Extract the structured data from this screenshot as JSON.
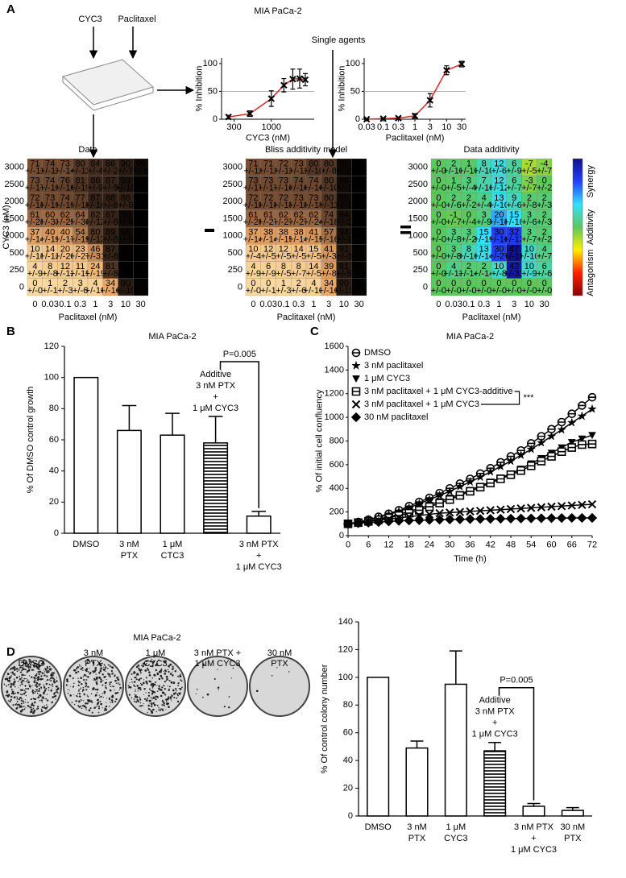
{
  "figure": {
    "panel_labels": [
      "A",
      "B",
      "C",
      "D"
    ],
    "title_a": "MIA PaCa-2",
    "schematic": {
      "drug1": "CYC3",
      "drug2": "Paclitaxel",
      "single_agents": "Single agents"
    },
    "title_d": "MIA PaCa-2",
    "plates": [
      [
        "DMSO"
      ],
      [
        "3 nM",
        "PTX"
      ],
      [
        "1 μM",
        "CYC3"
      ],
      [
        "3 nM PTX +",
        "1 μM CYC3"
      ],
      [
        "30 nM",
        "PTX"
      ]
    ]
  },
  "chart_data": [
    {
      "type": "line",
      "xscale": "log",
      "x": [
        250,
        500,
        1000,
        1500,
        2000,
        2500,
        3000
      ],
      "xlim": [
        200,
        4000
      ],
      "xticks": [
        300,
        1000
      ],
      "ylim": [
        0,
        110
      ],
      "yticks": [
        0,
        50,
        100
      ],
      "reference_line": 50,
      "xlabel": "CYC3 (nM)",
      "ylabel": "% Inhibition",
      "series": [
        {
          "values": [
            4,
            10,
            37,
            61,
            72,
            73,
            71
          ],
          "errors": [
            3,
            5,
            14,
            12,
            18,
            17,
            11
          ],
          "color": "#d62728",
          "marker": "x",
          "marker_color": "#000000"
        }
      ]
    },
    {
      "type": "line",
      "xscale": "log",
      "x": [
        0.03,
        0.1,
        0.3,
        1,
        3,
        10,
        30
      ],
      "xlim": [
        0.025,
        40
      ],
      "xticks": [
        0.03,
        0.1,
        0.3,
        1,
        3,
        10,
        30
      ],
      "ylim": [
        0,
        110
      ],
      "yticks": [
        0,
        50,
        100
      ],
      "reference_line": 50,
      "xlabel": "Paclitaxel (nM)",
      "ylabel": "% Inhibition",
      "series": [
        {
          "values": [
            0,
            1,
            2,
            6,
            34,
            88,
            99
          ],
          "errors": [
            1,
            1,
            2,
            4,
            12,
            8,
            5
          ],
          "color": "#d62728",
          "marker": "x",
          "marker_color": "#000000"
        }
      ]
    },
    {
      "type": "heatmap",
      "title": "Data",
      "x": [
        0,
        0.03,
        0.1,
        0.3,
        1,
        3,
        10,
        30
      ],
      "y": [
        3000,
        2500,
        2000,
        1500,
        1000,
        500,
        250,
        0
      ],
      "xlabel": "Paclitaxel (nM)",
      "ylabel": "CYC3 (nM)",
      "clim": [
        0,
        100
      ],
      "colors": [
        "#f9d9a0",
        "#eaa868",
        "#8a5a3a",
        "#000000"
      ],
      "values": [
        [
          71,
          74,
          73,
          80,
          84,
          86,
          90,
          96
        ],
        [
          73,
          74,
          76,
          81,
          86,
          87,
          93,
          100
        ],
        [
          72,
          73,
          74,
          77,
          87,
          88,
          88,
          102
        ],
        [
          61,
          60,
          62,
          64,
          82,
          87,
          96,
          103
        ],
        [
          37,
          40,
          40,
          54,
          80,
          89,
          96,
          103
        ],
        [
          10,
          14,
          20,
          23,
          46,
          87,
          99,
          103
        ],
        [
          4,
          8,
          12,
          11,
          24,
          81,
          100,
          105
        ],
        [
          0,
          1,
          2,
          3,
          4,
          34,
          90,
          99
        ]
      ],
      "error_labels": [
        [
          "+/-11",
          "+/-11",
          "+/-14",
          "+/-11",
          "+/-4",
          "+/-2",
          "+/-7",
          "+/-8"
        ],
        [
          "+/-17",
          "+/-19",
          "+/-16",
          "+/-19",
          "+/-9",
          "+/-5",
          "+/-10",
          "+/-3"
        ],
        [
          "+/-18",
          "+/-19",
          "+/-19",
          "+/-18",
          "+/-16",
          "+/-8",
          "+/-6",
          "+/-4"
        ],
        [
          "+/-28",
          "+/-33",
          "+/-29",
          "+/-30",
          "+/-12",
          "+/-8",
          "+/-6",
          "+/-2"
        ],
        [
          "+/-14",
          "+/-19",
          "+/-17",
          "+/-19",
          "+/-12",
          "+/-8",
          "+/-6",
          "+/-3"
        ],
        [
          "+/-18",
          "+/-12",
          "+/-20",
          "+/-27",
          "+/-31",
          "+/-8",
          "+/-5",
          "+/-4"
        ],
        [
          "+/-9",
          "+/-8",
          "+/-12",
          "+/-19",
          "+/-19",
          "+/-8",
          "+/-5",
          "+/-4"
        ],
        [
          "+/-0",
          "+/-1",
          "+/-3",
          "+/-6",
          "+/-10",
          "+/-16",
          "+/-10",
          "+/-5"
        ]
      ]
    },
    {
      "type": "heatmap",
      "title": "Bliss additivity model",
      "x": [
        0,
        0.03,
        0.1,
        0.3,
        1,
        3,
        10,
        30
      ],
      "y": [
        3000,
        2500,
        2000,
        1500,
        1000,
        500,
        250,
        0
      ],
      "xlabel": "Paclitaxel (nM)",
      "clim": [
        0,
        100
      ],
      "colors": [
        "#f9d9a0",
        "#eaa868",
        "#8a5a3a",
        "#000000"
      ],
      "values": [
        [
          71,
          71,
          72,
          73,
          80,
          80,
          97,
          100
        ],
        [
          73,
          73,
          73,
          74,
          74,
          80,
          96,
          100
        ],
        [
          72,
          72,
          72,
          73,
          73,
          80,
          96,
          100
        ],
        [
          61,
          61,
          62,
          62,
          62,
          74,
          94,
          101
        ],
        [
          37,
          38,
          38,
          38,
          41,
          57,
          94,
          100
        ],
        [
          10,
          12,
          12,
          14,
          15,
          41,
          91,
          99
        ],
        [
          4,
          6,
          8,
          8,
          14,
          39,
          91,
          99
        ],
        [
          0,
          0,
          1,
          2,
          4,
          34,
          90,
          99
        ]
      ],
      "error_labels": [
        [
          "+/-11",
          "+/-11",
          "+/-11",
          "+/-11",
          "+/-10",
          "+/-8",
          "+/-2",
          "+/-1"
        ],
        [
          "+/-17",
          "+/-17",
          "+/-16",
          "+/-16",
          "+/-16",
          "+/-10",
          "+/-1",
          "+/-1"
        ],
        [
          "+/-18",
          "+/-18",
          "+/-18",
          "+/-18",
          "+/-18",
          "+/-11",
          "+/-1",
          "+/-1"
        ],
        [
          "+/-28",
          "+/-27",
          "+/-27",
          "+/-27",
          "+/-24",
          "+/-18",
          "+/-1",
          "+/-1"
        ],
        [
          "+/-14",
          "+/-14",
          "+/-15",
          "+/-14",
          "+/-15",
          "+/-16",
          "+/-1",
          "+/-1"
        ],
        [
          "+/-4",
          "+/-5",
          "+/-5",
          "+/-5",
          "+/-5",
          "+/-3",
          "+/-3",
          "+/-5"
        ],
        [
          "+/-9",
          "+/-9",
          "+/-5",
          "+/-7",
          "+/-5",
          "+/-8",
          "+/-5",
          "+/-4"
        ],
        [
          "+/-0",
          "+/-1",
          "+/-3",
          "+/-6",
          "+/-10",
          "+/-16",
          "+/-10",
          "+/-5"
        ]
      ]
    },
    {
      "type": "heatmap",
      "title": "Data additivity",
      "x": [
        0,
        0.03,
        0.1,
        0.3,
        1,
        3,
        10,
        30
      ],
      "y": [
        3000,
        2500,
        2000,
        1500,
        1000,
        500,
        250,
        0
      ],
      "xlabel": "Paclitaxel (nM)",
      "clim": [
        -45,
        45
      ],
      "colors": [
        "#8b0000",
        "#ff2000",
        "#ffee00",
        "#5cc85c",
        "#33e0ff",
        "#2040ff",
        "#10108a"
      ],
      "colorbar_labels": [
        "Synergy",
        "Additivity",
        "Antagonism"
      ],
      "values": [
        [
          0,
          2,
          1,
          8,
          12,
          6,
          -7,
          -4
        ],
        [
          0,
          1,
          3,
          7,
          12,
          6,
          -3,
          0
        ],
        [
          0,
          2,
          2,
          4,
          13,
          9,
          2,
          2
        ],
        [
          0,
          -1,
          0,
          3,
          20,
          15,
          3,
          2
        ],
        [
          0,
          3,
          3,
          15,
          30,
          32,
          3,
          2
        ],
        [
          0,
          3,
          8,
          13,
          30,
          47,
          10,
          4
        ],
        [
          0,
          4,
          2,
          2,
          10,
          42,
          10,
          6
        ],
        [
          0,
          0,
          0,
          0,
          0,
          0,
          0,
          0
        ]
      ],
      "error_labels": [
        [
          "+/-0",
          "+/-10",
          "+/-10",
          "+/-10",
          "+/-6",
          "+/-9",
          "+/-5",
          "+/-7"
        ],
        [
          "+/-0",
          "+/-5",
          "+/-4",
          "+/-10",
          "+/-12",
          "+/-7",
          "+/-7",
          "+/-2"
        ],
        [
          "+/-0",
          "+/-6",
          "+/-2",
          "+/-4",
          "+/-10",
          "+/-6",
          "+/-8",
          "+/-3"
        ],
        [
          "+/-0",
          "+/-7",
          "+/-4",
          "+/-9",
          "+/-18",
          "+/-16",
          "+/-6",
          "+/-3"
        ],
        [
          "+/-0",
          "+/-8",
          "+/-2",
          "+/-19",
          "+/-16",
          "+/-13",
          "+/-7",
          "+/-2"
        ],
        [
          "+/-0",
          "+/-8",
          "+/-16",
          "+/-14",
          "+/-27",
          "+/-16",
          "+/-10",
          "+/-7"
        ],
        [
          "+/-0",
          "+/-13",
          "+/-14",
          "+/-14",
          "+/-8",
          "+/-31",
          "+/-9",
          "+/-6"
        ],
        [
          "+/-0",
          "+/-0",
          "+/-0",
          "+/-0",
          "+/-0",
          "+/-0",
          "+/-0",
          "+/-0"
        ]
      ]
    },
    {
      "type": "bar",
      "title": "MIA PaCa-2",
      "categories": [
        [
          "DMSO"
        ],
        [
          "3 nM",
          "PTX"
        ],
        [
          "1 μM",
          "CTC3"
        ],
        null,
        [
          "3 nM PTX",
          "+",
          "1 μM CYC3"
        ]
      ],
      "values": [
        100,
        66,
        63,
        58,
        11
      ],
      "errors": [
        null,
        16,
        14,
        17,
        3
      ],
      "hatch": [
        false,
        false,
        false,
        true,
        false
      ],
      "color": "#ffffff",
      "annotation": [
        "Additive",
        "3 nM PTX",
        "+",
        "1 μM CYC3"
      ],
      "bracket_label": "P=0.005",
      "ylabel": "% Of DMSO control growth",
      "ylim": [
        0,
        120
      ],
      "yticks": [
        0,
        20,
        40,
        60,
        80,
        100,
        120
      ]
    },
    {
      "type": "line",
      "title": "MIA PaCa-2",
      "xlabel": "Time (h)",
      "ylabel": "% Of initial cell confluency",
      "legend": "upper left",
      "legend_annotation": "***",
      "x": [
        0,
        3,
        6,
        9,
        12,
        15,
        18,
        21,
        24,
        27,
        30,
        33,
        36,
        39,
        42,
        45,
        48,
        51,
        54,
        57,
        60,
        63,
        66,
        69,
        72
      ],
      "xlim": [
        0,
        72
      ],
      "xticks": [
        0,
        6,
        12,
        18,
        24,
        30,
        36,
        42,
        48,
        54,
        60,
        66,
        72
      ],
      "ylim": [
        0,
        1600
      ],
      "yticks": [
        0,
        200,
        400,
        600,
        800,
        1000,
        1200,
        1400,
        1600
      ],
      "series": [
        {
          "name": "DMSO",
          "marker": "circle",
          "color": "#000000",
          "values": [
            100,
            115,
            135,
            160,
            185,
            215,
            250,
            285,
            320,
            360,
            400,
            440,
            480,
            525,
            570,
            620,
            670,
            720,
            780,
            840,
            900,
            960,
            1030,
            1100,
            1170
          ]
        },
        {
          "name": "3 nM paclitaxel",
          "marker": "star",
          "color": "#000000",
          "values": [
            100,
            115,
            135,
            155,
            180,
            205,
            235,
            270,
            305,
            340,
            375,
            415,
            455,
            495,
            540,
            585,
            630,
            680,
            730,
            785,
            840,
            895,
            955,
            1010,
            1070
          ]
        },
        {
          "name": "1 μM CYC3",
          "marker": "triangle",
          "color": "#000000",
          "values": [
            100,
            110,
            125,
            140,
            160,
            180,
            205,
            230,
            260,
            290,
            320,
            350,
            385,
            420,
            455,
            490,
            525,
            565,
            610,
            655,
            700,
            745,
            790,
            820,
            850
          ]
        },
        {
          "name": "3 nM paclitaxel + 1 μM CYC3-additive",
          "marker": "square",
          "color": "#000000",
          "values": [
            100,
            110,
            120,
            135,
            150,
            170,
            190,
            215,
            245,
            275,
            305,
            340,
            375,
            410,
            445,
            480,
            515,
            550,
            590,
            630,
            670,
            710,
            745,
            770,
            775
          ]
        },
        {
          "name": "3 nM paclitaxel + 1 μM CYC3",
          "marker": "x",
          "color": "#000000",
          "values": [
            100,
            110,
            120,
            130,
            140,
            150,
            160,
            170,
            180,
            190,
            195,
            200,
            205,
            210,
            215,
            220,
            225,
            230,
            235,
            240,
            245,
            250,
            255,
            260,
            265
          ]
        },
        {
          "name": "30 nM paclitaxel",
          "marker": "diamond",
          "color": "#000000",
          "values": [
            100,
            105,
            110,
            115,
            120,
            125,
            128,
            130,
            133,
            135,
            137,
            138,
            140,
            141,
            142,
            143,
            144,
            145,
            146,
            147,
            148,
            149,
            150,
            150,
            150
          ]
        }
      ]
    },
    {
      "type": "bar",
      "categories": [
        [
          "DMSO"
        ],
        [
          "3 nM",
          "PTX"
        ],
        [
          "1 μM",
          "CYC3"
        ],
        null,
        [
          "3 nM PTX",
          "+",
          "1 μM CYC3"
        ],
        [
          "30 nM",
          "PTX"
        ]
      ],
      "values": [
        100,
        49,
        95,
        47,
        7,
        4
      ],
      "errors": [
        null,
        5,
        24,
        6,
        2,
        2
      ],
      "hatch": [
        false,
        false,
        false,
        true,
        false,
        false
      ],
      "color": "#ffffff",
      "annotation": [
        "Additive",
        "3 nM PTX",
        "+",
        "1 μM CYC3"
      ],
      "bracket_label": "P=0.005",
      "ylabel": "% Of  control colony number",
      "ylim": [
        0,
        140
      ],
      "yticks": [
        0,
        20,
        40,
        60,
        80,
        100,
        120,
        140
      ]
    }
  ]
}
